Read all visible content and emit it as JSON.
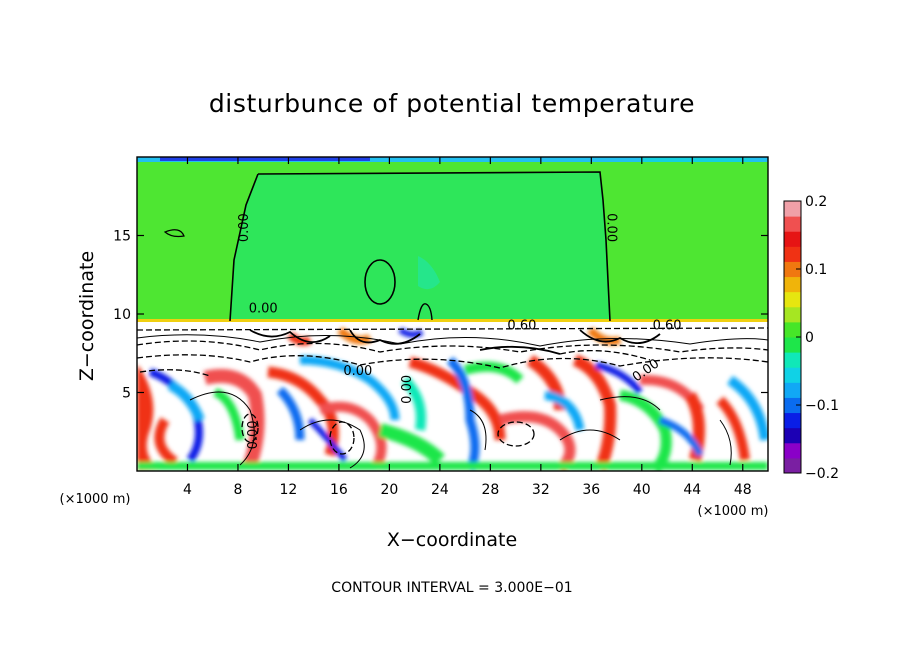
{
  "chart_data": {
    "type": "heatmap",
    "title": "disturbunce of potential temperature",
    "xlabel": "X−coordinate",
    "ylabel": "Z−coordinate",
    "x_unit": "(×1000 m)",
    "y_unit": "(×1000 m)",
    "xlim": [
      0,
      50
    ],
    "ylim": [
      0,
      20
    ],
    "x_ticks": [
      4,
      8,
      12,
      16,
      20,
      24,
      28,
      32,
      36,
      40,
      44,
      48
    ],
    "y_ticks": [
      5,
      10,
      15
    ],
    "colorbar": {
      "min": -0.2,
      "max": 0.2,
      "ticks": [
        {
          "value": 0.2,
          "label": "0.2"
        },
        {
          "value": 0.1,
          "label": "0.1"
        },
        {
          "value": 0,
          "label": "0"
        },
        {
          "value": -0.1,
          "label": "−0.1"
        },
        {
          "value": -0.2,
          "label": "−0.2"
        }
      ],
      "colors": [
        "#7a1fa2",
        "#8a00c8",
        "#1c00b4",
        "#0a1ee6",
        "#0a6cf0",
        "#11a8f5",
        "#10d2e6",
        "#10e8b8",
        "#1ee64a",
        "#46e628",
        "#a6e622",
        "#e6e610",
        "#f0b40a",
        "#f07810",
        "#f03214",
        "#e61414",
        "#f05050",
        "#f0a0a8"
      ]
    },
    "contour_labels": [
      {
        "text": "0.00",
        "x": 8.8,
        "y": 15.5,
        "rotate": -90
      },
      {
        "text": "0.00",
        "x": 37.3,
        "y": 15.5,
        "rotate": 90
      },
      {
        "text": "0.00",
        "x": 10.0,
        "y": 10.1,
        "rotate": 0
      },
      {
        "text": "0.60",
        "x": 30.5,
        "y": 9.0,
        "rotate": 0
      },
      {
        "text": "0.60",
        "x": 42.0,
        "y": 9.0,
        "rotate": 0
      },
      {
        "text": "0.00",
        "x": 17.5,
        "y": 6.1,
        "rotate": 0
      },
      {
        "text": "0.00",
        "x": 21.7,
        "y": 5.2,
        "rotate": -90
      },
      {
        "text": "0.00",
        "x": 40.5,
        "y": 6.2,
        "rotate": -35
      },
      {
        "text": "0.00",
        "x": 9.5,
        "y": 2.3,
        "rotate": -90
      }
    ],
    "contour_interval_label": "CONTOUR INTERVAL = 3.000E−01"
  }
}
